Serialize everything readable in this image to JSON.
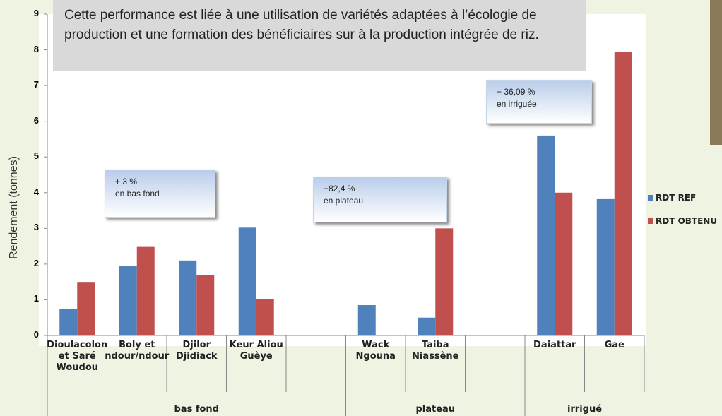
{
  "chart_data": {
    "type": "bar",
    "y_label": "Rendement (tonnes)",
    "categories": [
      "Dioulacolon et Saré Woudou",
      "Boly et ndour/ndour",
      "Djilor Djidiack",
      "Keur Aliou Guèye",
      null,
      "Wack Ngouna",
      "Taiba Niassène",
      null,
      "Daiattar",
      "Gae"
    ],
    "groups": [
      "bas fond",
      "plateau",
      "irrigué"
    ],
    "series": [
      {
        "name": "RDT REF",
        "color": "#4f81bd",
        "values": [
          0.75,
          1.95,
          2.1,
          3.02,
          null,
          0.85,
          0.5,
          null,
          5.6,
          3.82
        ]
      },
      {
        "name": "RDT OBTENU",
        "color": "#c0504d",
        "values": [
          1.5,
          2.48,
          1.7,
          1.02,
          null,
          null,
          3.0,
          null,
          4.0,
          7.95
        ]
      }
    ],
    "ylim": [
      0,
      9
    ],
    "yticks": [
      0,
      1,
      2,
      3,
      4,
      5,
      6,
      7,
      8,
      9
    ],
    "grid": false,
    "annotations": [
      [
        "+ 3 %",
        "en bas fond"
      ],
      [
        "+82,4 %",
        "en plateau"
      ],
      [
        "+ 36,09 %",
        "en irriguée"
      ]
    ],
    "caption": "Cette performance est liée à une utilisation de variétés adaptées à l’écologie de production et une formation des bénéficiaires  sur à la production intégrée de riz."
  }
}
